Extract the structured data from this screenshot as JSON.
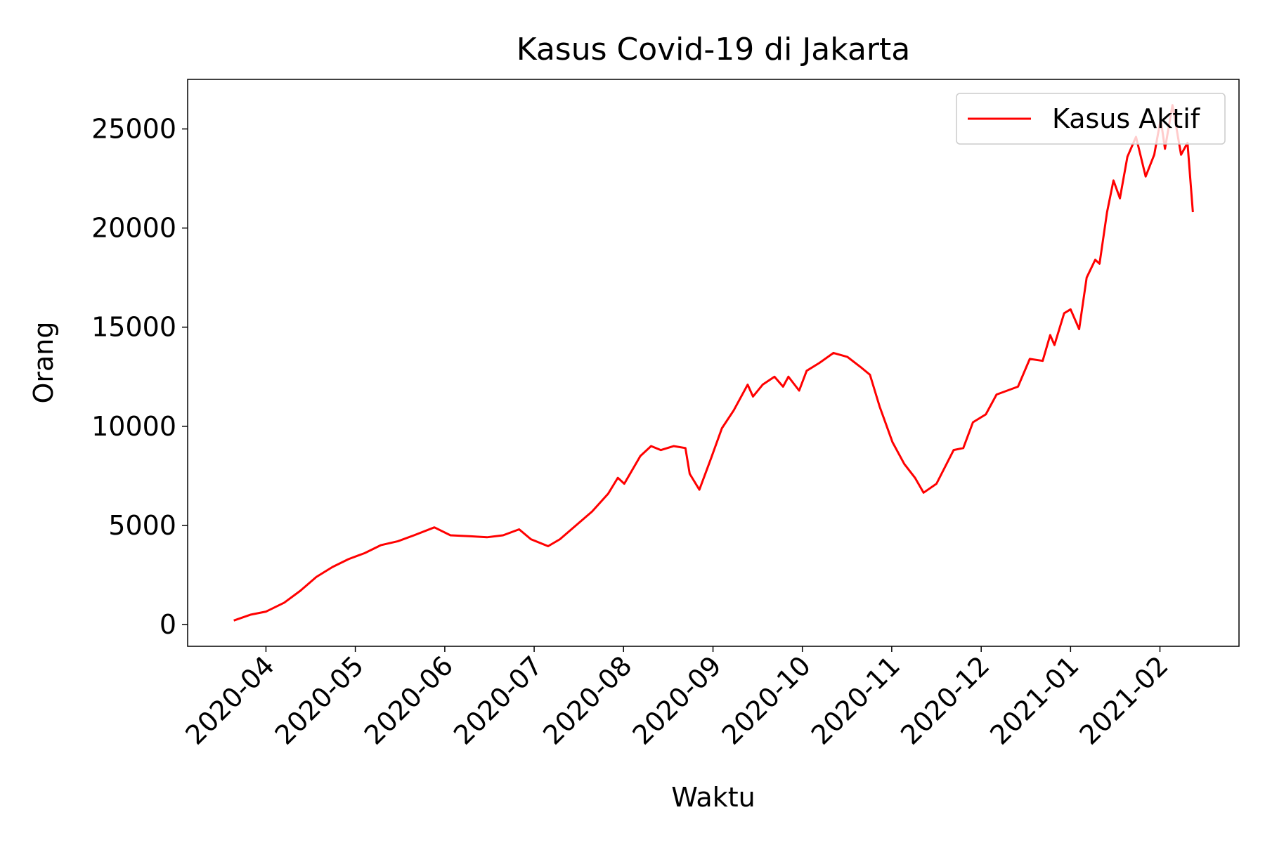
{
  "chart_data": {
    "type": "line",
    "title": "Kasus Covid-19 di Jakarta",
    "x_label": "Waktu",
    "y_label": "Orang",
    "x": [
      2020.22,
      2020.236,
      2020.25,
      2020.267,
      2020.282,
      2020.297,
      2020.312,
      2020.327,
      2020.342,
      2020.357,
      2020.373,
      2020.388,
      2020.407,
      2020.422,
      2020.441,
      2020.456,
      2020.471,
      2020.486,
      2020.497,
      2020.513,
      2020.524,
      2020.539,
      2020.554,
      2020.569,
      2020.578,
      2020.584,
      2020.599,
      2020.609,
      2020.618,
      2020.63,
      2020.641,
      2020.645,
      2020.654,
      2020.665,
      2020.675,
      2020.686,
      2020.699,
      2020.704,
      2020.713,
      2020.724,
      2020.732,
      2020.737,
      2020.747,
      2020.754,
      2020.766,
      2020.779,
      2020.792,
      2020.804,
      2020.813,
      2020.822,
      2020.83,
      2020.834,
      2020.845,
      2020.855,
      2020.863,
      2020.875,
      2020.891,
      2020.9,
      2020.909,
      2020.921,
      2020.931,
      2020.951,
      2020.962,
      2020.974,
      2020.981,
      2020.985,
      2020.994,
      2021.0,
      2021.008,
      2021.015,
      2021.023,
      2021.027,
      2021.034,
      2021.04,
      2021.046,
      2021.053,
      2021.061,
      2021.07,
      2021.078,
      2021.084,
      2021.088,
      2021.095,
      2021.103,
      2021.109,
      2021.114
    ],
    "series": [
      {
        "name": "Kasus Aktif",
        "color": "#ff0000",
        "values": [
          200,
          500,
          650,
          1100,
          1700,
          2400,
          2900,
          3300,
          3600,
          4000,
          4200,
          4500,
          4900,
          4500,
          4450,
          4400,
          4500,
          4800,
          4300,
          3950,
          4300,
          5000,
          5700,
          6600,
          7400,
          7100,
          8500,
          9000,
          8800,
          9000,
          8900,
          7600,
          6800,
          8400,
          9900,
          10800,
          12100,
          11500,
          12100,
          12500,
          12000,
          12500,
          11800,
          12800,
          13200,
          13700,
          13500,
          13000,
          12600,
          11000,
          9800,
          9200,
          8100,
          7400,
          6650,
          7100,
          8800,
          8900,
          10200,
          10600,
          11600,
          12000,
          13400,
          13300,
          14600,
          14100,
          15700,
          15900,
          14900,
          17500,
          18400,
          18200,
          20800,
          22400,
          21500,
          23600,
          24600,
          22600,
          23700,
          25500,
          24000,
          26200,
          23700,
          24300,
          20800
        ]
      }
    ],
    "xlim": [
      2020.177,
      2021.157
    ],
    "ylim": [
      -1100,
      27500
    ],
    "xticks": [
      {
        "value": 2020.25,
        "label": "2020-04"
      },
      {
        "value": 2020.3333,
        "label": "2020-05"
      },
      {
        "value": 2020.4167,
        "label": "2020-06"
      },
      {
        "value": 2020.5,
        "label": "2020-07"
      },
      {
        "value": 2020.5833,
        "label": "2020-08"
      },
      {
        "value": 2020.6667,
        "label": "2020-09"
      },
      {
        "value": 2020.75,
        "label": "2020-10"
      },
      {
        "value": 2020.8333,
        "label": "2020-11"
      },
      {
        "value": 2020.9167,
        "label": "2020-12"
      },
      {
        "value": 2021.0,
        "label": "2021-01"
      },
      {
        "value": 2021.0833,
        "label": "2021-02"
      }
    ],
    "yticks": [
      0,
      5000,
      10000,
      15000,
      20000,
      25000
    ],
    "legend": "upper right",
    "grid": false
  }
}
